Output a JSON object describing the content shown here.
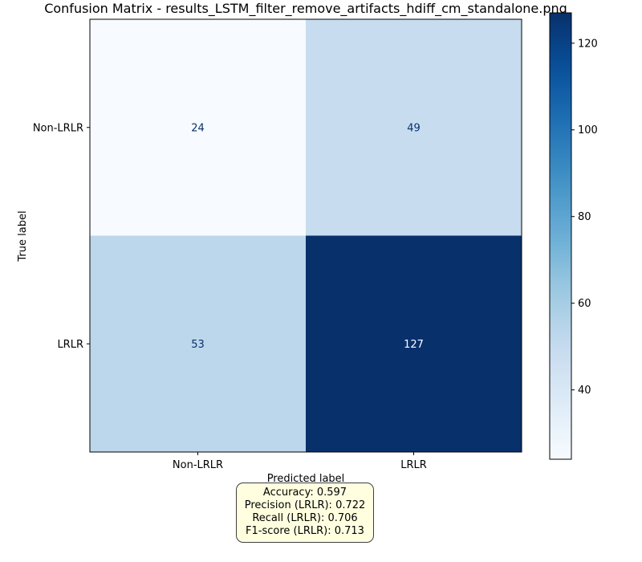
{
  "chart_data": {
    "type": "heatmap",
    "title": "Confusion Matrix - results_LSTM_filter_remove_artifacts_hdiff_cm_standalone.png",
    "xlabel": "Predicted label",
    "ylabel": "True label",
    "x_categories": [
      "Non-LRLR",
      "LRLR"
    ],
    "y_categories": [
      "Non-LRLR",
      "LRLR"
    ],
    "values": [
      [
        24,
        49
      ],
      [
        53,
        127
      ]
    ],
    "colormap": "Blues",
    "colorbar": {
      "range": [
        24,
        127
      ],
      "ticks": [
        40,
        60,
        80,
        100,
        120
      ]
    },
    "low_text_color": "#08306b",
    "high_text_color": "#ffffff"
  },
  "metrics": {
    "accuracy": "Accuracy: 0.597",
    "precision": "Precision (LRLR): 0.722",
    "recall": "Recall (LRLR): 0.706",
    "f1": "F1-score (LRLR): 0.713"
  }
}
